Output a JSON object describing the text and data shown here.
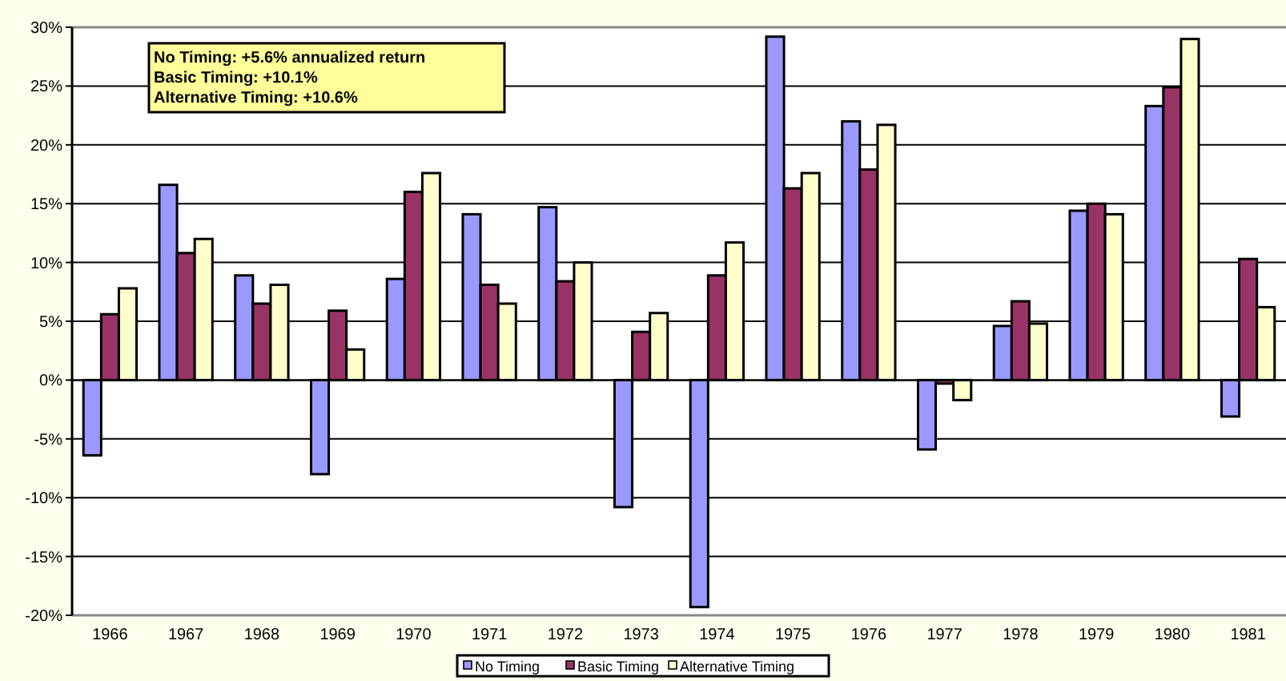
{
  "chart_data": {
    "type": "bar",
    "categories": [
      "1966",
      "1967",
      "1968",
      "1969",
      "1970",
      "1971",
      "1972",
      "1973",
      "1974",
      "1975",
      "1976",
      "1977",
      "1978",
      "1979",
      "1980",
      "1981"
    ],
    "series": [
      {
        "name": "No Timing",
        "color": "#9999ff",
        "values": [
          -6.4,
          16.6,
          8.9,
          -8,
          8.6,
          14.1,
          14.7,
          -10.8,
          -19.3,
          29.2,
          22,
          -5.9,
          4.6,
          14.4,
          23.3,
          -3.1
        ]
      },
      {
        "name": "Basic Timing",
        "color": "#993366",
        "values": [
          5.6,
          10.8,
          6.5,
          5.9,
          16,
          8.1,
          8.4,
          4.1,
          8.9,
          16.3,
          17.9,
          -0.3,
          6.7,
          15,
          24.9,
          10.3
        ]
      },
      {
        "name": "Alternative Timing",
        "color": "#ffffcc",
        "values": [
          7.8,
          12,
          8.1,
          2.6,
          17.6,
          6.5,
          10,
          5.7,
          11.7,
          17.6,
          21.7,
          -1.7,
          4.8,
          14.1,
          29,
          6.2
        ]
      }
    ],
    "ylim": [
      -20,
      30
    ],
    "yticks": [
      {
        "value": -20,
        "label": "-20%"
      },
      {
        "value": -15,
        "label": "-15%"
      },
      {
        "value": -10,
        "label": "-10%"
      },
      {
        "value": -5,
        "label": "-5%"
      },
      {
        "value": 0,
        "label": "0%"
      },
      {
        "value": 5,
        "label": "5%"
      },
      {
        "value": 10,
        "label": "10%"
      },
      {
        "value": 15,
        "label": "15%"
      },
      {
        "value": 20,
        "label": "20%"
      },
      {
        "value": 25,
        "label": "25%"
      },
      {
        "value": 30,
        "label": "30%"
      }
    ],
    "grid": "y",
    "legend": "bottom",
    "annotations": [
      "No Timing: +5.6% annualized return",
      "Basic Timing: +10.1%",
      "Alternative Timing: +10.6%"
    ]
  }
}
